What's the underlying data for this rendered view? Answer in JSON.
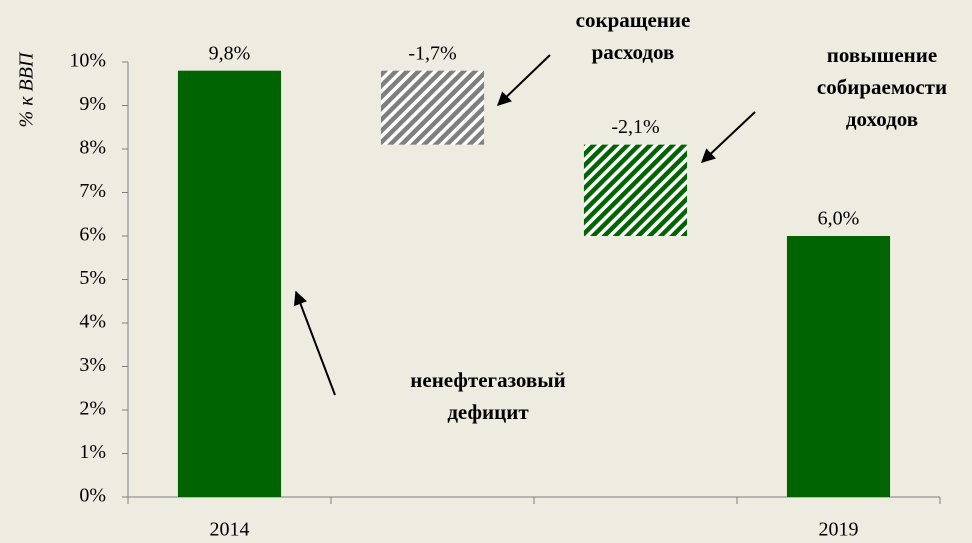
{
  "chart_data": {
    "type": "waterfall",
    "ylabel": "% к ВВП",
    "categories": [
      "2014",
      null,
      null,
      "2019"
    ],
    "values": [
      9.8,
      -1.7,
      -2.1,
      6.0
    ],
    "value_labels": [
      "9,8%",
      "-1,7%",
      "-2,1%",
      "6,0%"
    ],
    "totals": [
      true,
      false,
      false,
      true
    ],
    "colors": [
      "#006400",
      "#7f7f7f",
      "#006400",
      "#006400"
    ],
    "hatch": [
      false,
      true,
      true,
      false
    ],
    "ylim": [
      0,
      10
    ],
    "yticks": [
      {
        "value": 0,
        "label": "0%"
      },
      {
        "value": 1,
        "label": "1%"
      },
      {
        "value": 2,
        "label": "2%"
      },
      {
        "value": 3,
        "label": "3%"
      },
      {
        "value": 4,
        "label": "4%"
      },
      {
        "value": 5,
        "label": "5%"
      },
      {
        "value": 6,
        "label": "6%"
      },
      {
        "value": 7,
        "label": "7%"
      },
      {
        "value": 8,
        "label": "8%"
      },
      {
        "value": 9,
        "label": "9%"
      },
      {
        "value": 10,
        "label": "10%"
      }
    ],
    "annotations": [
      {
        "lines": [
          "сокращение",
          "расходов"
        ]
      },
      {
        "lines": [
          "повышение",
          "собираемости",
          "доходов"
        ]
      },
      {
        "lines": [
          "ненефтегазовый",
          "дефицит"
        ]
      }
    ]
  }
}
